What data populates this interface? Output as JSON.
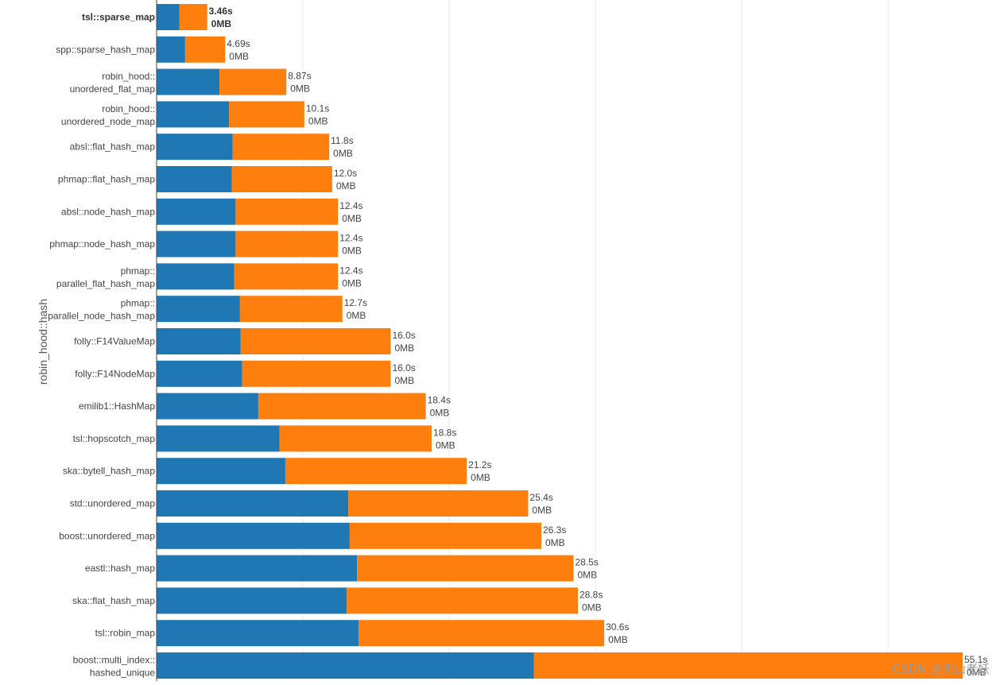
{
  "chart_data": {
    "type": "bar",
    "orientation": "horizontal",
    "stacked": true,
    "ylabel": "robin_hood::hash",
    "grid": true,
    "xlim": [
      0,
      55.1
    ],
    "colors": {
      "first": "#1f77b4",
      "second": "#ff7f0e"
    },
    "categories": [
      {
        "lines": [
          "tsl::sparse_map"
        ],
        "total": 3.46,
        "first": 1.55,
        "time_label": "3.46s",
        "mem_label": "0MB",
        "bold": true
      },
      {
        "lines": [
          "spp::sparse_hash_map"
        ],
        "total": 4.69,
        "first": 1.95,
        "time_label": "4.69s",
        "mem_label": "0MB"
      },
      {
        "lines": [
          "robin_hood::",
          "unordered_flat_map"
        ],
        "total": 8.87,
        "first": 4.3,
        "time_label": "8.87s",
        "mem_label": "0MB"
      },
      {
        "lines": [
          "robin_hood::",
          "unordered_node_map"
        ],
        "total": 10.1,
        "first": 4.95,
        "time_label": "10.1s",
        "mem_label": "0MB"
      },
      {
        "lines": [
          "absl::flat_hash_map"
        ],
        "total": 11.8,
        "first": 5.2,
        "time_label": "11.8s",
        "mem_label": "0MB"
      },
      {
        "lines": [
          "phmap::flat_hash_map"
        ],
        "total": 12.0,
        "first": 5.15,
        "time_label": "12.0s",
        "mem_label": "0MB"
      },
      {
        "lines": [
          "absl::node_hash_map"
        ],
        "total": 12.4,
        "first": 5.4,
        "time_label": "12.4s",
        "mem_label": "0MB"
      },
      {
        "lines": [
          "phmap::node_hash_map"
        ],
        "total": 12.4,
        "first": 5.4,
        "time_label": "12.4s",
        "mem_label": "0MB"
      },
      {
        "lines": [
          "phmap::",
          "parallel_flat_hash_map"
        ],
        "total": 12.4,
        "first": 5.3,
        "time_label": "12.4s",
        "mem_label": "0MB"
      },
      {
        "lines": [
          "phmap::",
          "parallel_node_hash_map"
        ],
        "total": 12.7,
        "first": 5.7,
        "time_label": "12.7s",
        "mem_label": "0MB"
      },
      {
        "lines": [
          "folly::F14ValueMap"
        ],
        "total": 16.0,
        "first": 5.75,
        "time_label": "16.0s",
        "mem_label": "0MB"
      },
      {
        "lines": [
          "folly::F14NodeMap"
        ],
        "total": 16.0,
        "first": 5.85,
        "time_label": "16.0s",
        "mem_label": "0MB"
      },
      {
        "lines": [
          "emilib1::HashMap"
        ],
        "total": 18.4,
        "first": 6.95,
        "time_label": "18.4s",
        "mem_label": "0MB"
      },
      {
        "lines": [
          "tsl::hopscotch_map"
        ],
        "total": 18.8,
        "first": 8.4,
        "time_label": "18.8s",
        "mem_label": "0MB"
      },
      {
        "lines": [
          "ska::bytell_hash_map"
        ],
        "total": 21.2,
        "first": 8.8,
        "time_label": "21.2s",
        "mem_label": "0MB"
      },
      {
        "lines": [
          "std::unordered_map"
        ],
        "total": 25.4,
        "first": 13.1,
        "time_label": "25.4s",
        "mem_label": "0MB"
      },
      {
        "lines": [
          "boost::unordered_map"
        ],
        "total": 26.3,
        "first": 13.2,
        "time_label": "26.3s",
        "mem_label": "0MB"
      },
      {
        "lines": [
          "eastl::hash_map"
        ],
        "total": 28.5,
        "first": 13.7,
        "time_label": "28.5s",
        "mem_label": "0MB"
      },
      {
        "lines": [
          "ska::flat_hash_map"
        ],
        "total": 28.8,
        "first": 13.0,
        "time_label": "28.8s",
        "mem_label": "0MB"
      },
      {
        "lines": [
          "tsl::robin_map"
        ],
        "total": 30.6,
        "first": 13.8,
        "time_label": "30.6s",
        "mem_label": "0MB"
      },
      {
        "lines": [
          "boost::multi_index::",
          "hashed_unique"
        ],
        "total": 55.1,
        "first": 25.8,
        "time_label": "55.1s",
        "mem_label": "0MB"
      }
    ]
  },
  "watermark": "CSDN @天山老妖"
}
